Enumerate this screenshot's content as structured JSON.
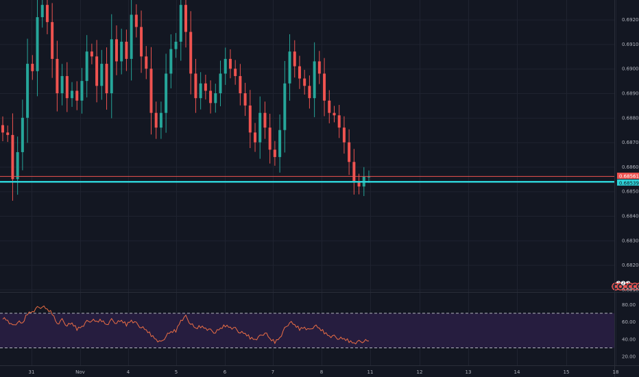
{
  "chart_data": [
    {
      "type": "candlestick",
      "title": "",
      "ylim": [
        0.6809,
        0.6928
      ],
      "y_ticks": [
        "0.69200",
        "0.69100",
        "0.69000",
        "0.68900",
        "0.68800",
        "0.68700",
        "0.68600",
        "0.68500",
        "0.68400",
        "0.68300",
        "0.68200",
        "0.68100"
      ],
      "y_tick_values": [
        0.692,
        0.691,
        0.69,
        0.689,
        0.688,
        0.687,
        0.686,
        0.685,
        0.684,
        0.683,
        0.682,
        0.681
      ],
      "x_ticks": [
        "31",
        "Nov",
        "4",
        "5",
        "6",
        "7",
        "8",
        "11",
        "12",
        "13",
        "14",
        "15",
        "18"
      ],
      "current_price_label": "0.68561",
      "current_price": 0.68561,
      "highlight_level_label": "0.68539",
      "highlight_level": 0.68539,
      "bull_color": "#26a69a",
      "bear_color": "#ef5350",
      "highlight_color": "#2ed3d8",
      "last_bar_index": 74,
      "closes": [
        0.6874,
        0.6873,
        0.6855,
        0.6866,
        0.688,
        0.6902,
        0.6899,
        0.6921,
        0.6926,
        0.6919,
        0.6904,
        0.689,
        0.6897,
        0.6888,
        0.6891,
        0.6887,
        0.6895,
        0.6907,
        0.6905,
        0.6893,
        0.6902,
        0.689,
        0.6912,
        0.6903,
        0.6911,
        0.6904,
        0.6922,
        0.6917,
        0.6905,
        0.69,
        0.6882,
        0.6876,
        0.6882,
        0.6898,
        0.6908,
        0.6911,
        0.6926,
        0.6915,
        0.6898,
        0.6888,
        0.6894,
        0.6891,
        0.6886,
        0.689,
        0.6898,
        0.6904,
        0.69,
        0.6897,
        0.689,
        0.6885,
        0.6874,
        0.687,
        0.6882,
        0.6876,
        0.6867,
        0.6864,
        0.6875,
        0.6894,
        0.6907,
        0.6901,
        0.6896,
        0.6893,
        0.6888,
        0.6903,
        0.6898,
        0.6887,
        0.6882,
        0.6881,
        0.6876,
        0.687,
        0.6862,
        0.6854,
        0.6852,
        0.6856,
        0.6856
      ],
      "series": [
        {
          "name": "",
          "type": "line",
          "ylim": [
            17,
            85
          ],
          "y_ticks": [
            "80.00",
            "60.00",
            "40.00",
            "20.00"
          ],
          "y_tick_values": [
            80,
            60,
            40,
            20
          ],
          "upper_band": 70,
          "lower_band": 30,
          "color": "#ef6f45",
          "values": [
            65,
            62,
            55,
            60,
            58,
            70,
            72,
            76,
            78,
            74,
            70,
            58,
            62,
            56,
            58,
            52,
            55,
            60,
            62,
            60,
            62,
            57,
            62,
            59,
            61,
            57,
            62,
            58,
            54,
            50,
            45,
            40,
            36,
            44,
            48,
            50,
            62,
            66,
            58,
            52,
            55,
            53,
            50,
            48,
            52,
            56,
            54,
            52,
            48,
            46,
            42,
            40,
            43,
            48,
            40,
            37,
            42,
            52,
            60,
            56,
            52,
            54,
            50,
            56,
            52,
            48,
            44,
            43,
            41,
            40,
            38,
            36,
            37,
            38,
            38
          ]
        }
      ]
    }
  ],
  "events": {
    "items": [
      {
        "label": "2",
        "count": 1,
        "color": "#ef5350",
        "x_pos": 12.1
      },
      {
        "label": "2",
        "count": 3,
        "color": "#ef5350",
        "x_pos": 12.6
      },
      {
        "label": "2",
        "count": 1,
        "color": "#ef5350",
        "x_pos": 13.05
      },
      {
        "label": "5",
        "count": 6,
        "color": "#ef5350",
        "x_pos": 13.75
      },
      {
        "label": "2",
        "count": 2,
        "color": "#ef5350",
        "x_pos": 14.55
      },
      {
        "label": "",
        "count": 1,
        "color": "#787b86",
        "x_pos": 15.1
      },
      {
        "label": "2",
        "count": 2,
        "color": "#ef5350",
        "x_pos": 15.65
      }
    ]
  }
}
